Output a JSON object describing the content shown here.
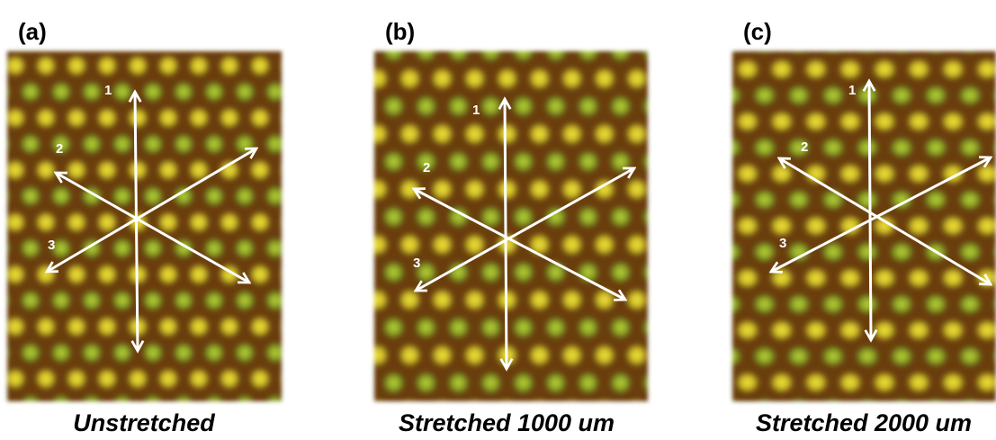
{
  "panels": [
    {
      "label": "(a)",
      "caption": "Unstretched",
      "arrow_labels": [
        "1",
        "2",
        "3"
      ]
    },
    {
      "label": "(b)",
      "caption": "Stretched 1000 um",
      "arrow_labels": [
        "1",
        "2",
        "3"
      ]
    },
    {
      "label": "(c)",
      "caption": "Stretched 2000 um",
      "arrow_labels": [
        "1",
        "2",
        "3"
      ]
    }
  ]
}
